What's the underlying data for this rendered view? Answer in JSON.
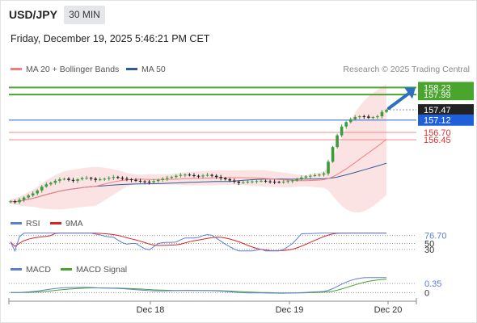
{
  "header": {
    "symbol": "USD/JPY",
    "timeframe": "30 MIN",
    "datetime": "Friday, December 19, 2025 5:46:21 PM CET"
  },
  "legend": {
    "ma20": "MA 20 + Bollinger Bands",
    "ma50": "MA 50",
    "ma20_color": "#f08080",
    "ma50_color": "#2f5a9a",
    "credit": "Research © 2025 Trading Central"
  },
  "rsi_legend": {
    "rsi": "RSI",
    "ma9": "9MA",
    "rsi_color": "#5b7fd6",
    "ma9_color": "#d22"
  },
  "macd_legend": {
    "macd": "MACD",
    "signal": "MACD Signal",
    "macd_color": "#5b7fd6",
    "signal_color": "#4aa52e"
  },
  "chart_data": [
    {
      "type": "candlestick",
      "title": "USD/JPY 30 MIN",
      "price_levels": [
        {
          "label": "158.23",
          "value": 158.23,
          "kind": "resistance",
          "color": "#4aa52e"
        },
        {
          "label": "157.99",
          "value": 157.99,
          "kind": "resistance",
          "color": "#4aa52e"
        },
        {
          "label": "157.47",
          "value": 157.47,
          "kind": "last",
          "color": "#222222"
        },
        {
          "label": "157.12",
          "value": 157.12,
          "kind": "pivot",
          "color": "#1f5fd9"
        },
        {
          "label": "156.70",
          "value": 156.7,
          "kind": "support",
          "color": "#e05050"
        },
        {
          "label": "156.45",
          "value": 156.45,
          "kind": "support",
          "color": "#e05050"
        }
      ],
      "x_ticks": [
        "Dec 18",
        "Dec 19",
        "Dec 20"
      ],
      "close": [
        154.35,
        154.32,
        154.4,
        154.48,
        154.55,
        154.62,
        154.72,
        154.85,
        154.93,
        154.98,
        155.05,
        155.1,
        155.12,
        155.08,
        155.05,
        155.1,
        155.14,
        155.15,
        155.12,
        155.08,
        155.1,
        155.12,
        155.15,
        155.18,
        155.15,
        155.12,
        155.1,
        155.08,
        155.05,
        155.03,
        155.02,
        155.0,
        155.04,
        155.08,
        155.12,
        155.15,
        155.18,
        155.22,
        155.25,
        155.26,
        155.24,
        155.22,
        155.2,
        155.23,
        155.25,
        155.22,
        155.18,
        155.14,
        155.1,
        155.06,
        155.02,
        154.98,
        155.0,
        155.02,
        155.03,
        155.04,
        155.05,
        155.03,
        155.02,
        155.01,
        155.0,
        155.02,
        155.04,
        155.06,
        155.1,
        155.16,
        155.2,
        155.22,
        155.24,
        155.26,
        155.3,
        155.7,
        156.2,
        156.6,
        156.9,
        157.05,
        157.15,
        157.22,
        157.25,
        157.24,
        157.2,
        157.22,
        157.25,
        157.4,
        157.47
      ],
      "ma20_visible": true,
      "ma50_visible": true,
      "bollinger_visible": true,
      "ylim": [
        154.0,
        158.6
      ]
    },
    {
      "type": "line",
      "title": "RSI",
      "series": [
        {
          "name": "RSI"
        },
        {
          "name": "9MA"
        }
      ],
      "last_value": "76.70",
      "levels": [
        "76.70",
        "50",
        "30"
      ],
      "ylim": [
        0,
        100
      ]
    },
    {
      "type": "line",
      "title": "MACD",
      "series": [
        {
          "name": "MACD"
        },
        {
          "name": "MACD Signal"
        }
      ],
      "last_value": "0.35",
      "levels": [
        "0.35",
        "0"
      ],
      "ylim": [
        -0.3,
        0.6
      ]
    }
  ]
}
